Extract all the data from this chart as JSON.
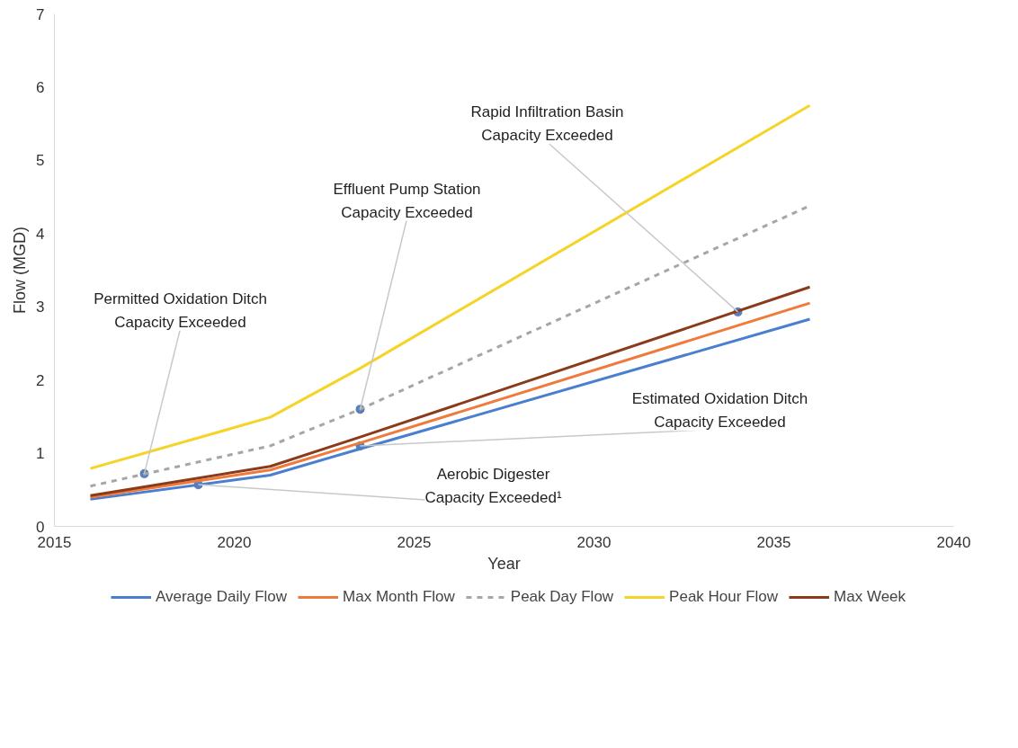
{
  "chart_data": {
    "type": "line",
    "xlabel": "Year",
    "ylabel": "Flow (MGD)",
    "x": [
      2016,
      2021,
      2023.5,
      2036
    ],
    "series": [
      {
        "name": "Average Daily Flow",
        "color": "#4a7fcf",
        "values": [
          0.37,
          0.7,
          1.06,
          2.83
        ]
      },
      {
        "name": "Max Month Flow",
        "color": "#ef7a3c",
        "values": [
          0.4,
          0.77,
          1.14,
          3.05
        ]
      },
      {
        "name": "Peak Day Flow",
        "color": "#a6a6a6",
        "line_style": "dashed",
        "values": [
          0.55,
          1.1,
          1.6,
          4.38
        ]
      },
      {
        "name": "Peak Hour Flow",
        "color": "#f5d327",
        "values": [
          0.79,
          1.49,
          2.16,
          5.75
        ]
      },
      {
        "name": "Max Week",
        "color": "#8b3a1a",
        "values": [
          0.42,
          0.82,
          1.22,
          3.27
        ]
      }
    ],
    "xlim": [
      2015,
      2040
    ],
    "xticks": [
      2015,
      2020,
      2025,
      2030,
      2035,
      2040
    ],
    "ylim": [
      0,
      7
    ],
    "yticks": [
      0,
      1,
      2,
      3,
      4,
      5,
      6,
      7
    ],
    "grid": false,
    "legend": "bottom",
    "marker": "none",
    "line_style": "solid",
    "annotations": [
      {
        "text": "Permitted Oxidation Ditch Capacity Exceeded",
        "x": 2017.5,
        "y": 0.72
      },
      {
        "text": "Effluent Pump Station Capacity Exceeded",
        "x": 2023.5,
        "y": 1.6
      },
      {
        "text": "Rapid Infiltration Basin Capacity Exceeded",
        "x": 2034,
        "y": 2.93
      },
      {
        "text": "Estimated Oxidation Ditch Capacity Exceeded",
        "x": 2023.5,
        "y": 1.1
      },
      {
        "text": "Aerobic Digester Capacity Exceeded¹",
        "x": 2019,
        "y": 0.57
      }
    ]
  }
}
